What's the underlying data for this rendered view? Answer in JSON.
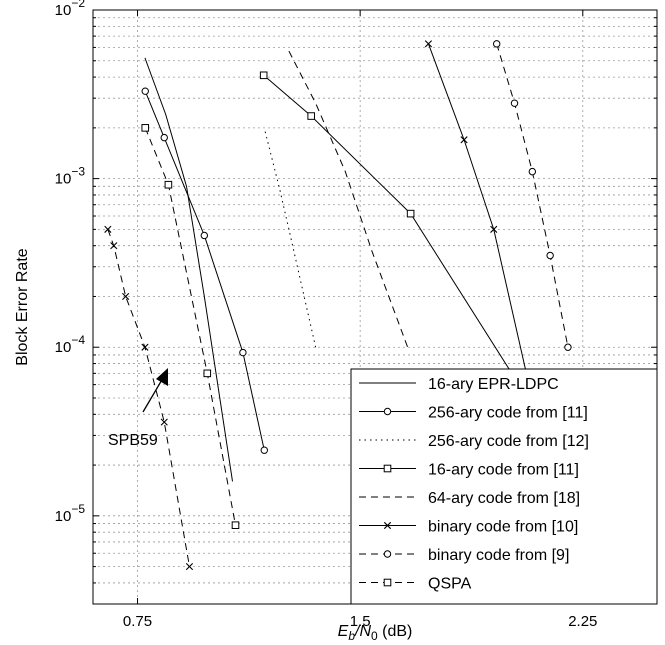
{
  "chart_data": {
    "type": "line",
    "title": "",
    "xlabel": {
      "main": "E",
      "sub1": "b",
      "slash": "/N",
      "sub2": "0",
      "unit": " (dB)"
    },
    "ylabel": "Block Error Rate",
    "xlim": [
      0.6,
      2.5
    ],
    "ylim": [
      3e-06,
      0.01
    ],
    "yscale": "log",
    "grid": true,
    "legend_position": "bottom-right",
    "x_ticks": [
      {
        "value": 0.75,
        "label": "0.75"
      },
      {
        "value": 1.5,
        "label": "1.5"
      },
      {
        "value": 2.25,
        "label": "2.25"
      }
    ],
    "y_ticks": [
      {
        "value": 1e-05,
        "base": "10",
        "exp": "−5"
      },
      {
        "value": 0.0001,
        "base": "10",
        "exp": "−4"
      },
      {
        "value": 0.001,
        "base": "10",
        "exp": "−3"
      },
      {
        "value": 0.01,
        "base": "10",
        "exp": "−2"
      }
    ],
    "series": [
      {
        "name": "16-ary EPR-LDPC",
        "dash": "solid",
        "marker": "none",
        "x": [
          0.775,
          0.845,
          0.915,
          0.975,
          1.07
        ],
        "y": [
          0.0052,
          0.0024,
          0.0009,
          0.0002,
          1.6e-05
        ]
      },
      {
        "name": "256-ary code from [11]",
        "dash": "solid",
        "marker": "circle",
        "x": [
          0.776,
          0.84,
          0.975,
          1.105,
          1.177
        ],
        "y": [
          0.0033,
          0.00175,
          0.00046,
          9.3e-05,
          2.45e-05
        ]
      },
      {
        "name": "256-ary code from [12]",
        "dash": "dotted",
        "marker": "none",
        "x": [
          1.18,
          1.23,
          1.28,
          1.35
        ],
        "y": [
          0.0019,
          0.00085,
          0.00035,
          0.0001
        ]
      },
      {
        "name": "16-ary code from [11]",
        "dash": "solid",
        "marker": "square",
        "x": [
          1.175,
          1.335,
          1.67,
          2.02
        ],
        "y": [
          0.0041,
          0.00235,
          0.00062,
          6.6e-05
        ]
      },
      {
        "name": "64-ary code from [18]",
        "dash": "dashed",
        "marker": "none",
        "x": [
          1.26,
          1.35,
          1.45,
          1.54,
          1.66
        ],
        "y": [
          0.0057,
          0.0028,
          0.0011,
          0.00037,
          0.0001
        ]
      },
      {
        "name": "binary code from [10]",
        "dash": "solid",
        "marker": "x",
        "x": [
          1.73,
          1.85,
          1.95,
          2.06
        ],
        "y": [
          0.0063,
          0.0017,
          0.0005,
          7e-05
        ]
      },
      {
        "name": "binary code from [9]",
        "dash": "dashed",
        "marker": "circle",
        "x": [
          1.96,
          2.02,
          2.08,
          2.14,
          2.2
        ],
        "y": [
          0.0063,
          0.0028,
          0.0011,
          0.00035,
          0.0001
        ]
      },
      {
        "name": "QSPA",
        "dash": "dashed",
        "marker": "square",
        "x": [
          0.776,
          0.854,
          0.985,
          1.08
        ],
        "y": [
          0.002,
          0.00092,
          7e-05,
          8.8e-06
        ]
      },
      {
        "name": "SPB59",
        "dash": "dashed",
        "marker": "x",
        "legend": false,
        "x": [
          0.65,
          0.67,
          0.71,
          0.775,
          0.84,
          0.925
        ],
        "y": [
          0.0005,
          0.0004,
          0.0002,
          0.0001,
          3.6e-05,
          5e-06
        ]
      }
    ],
    "annotations": [
      {
        "text": "SPB59"
      }
    ]
  }
}
